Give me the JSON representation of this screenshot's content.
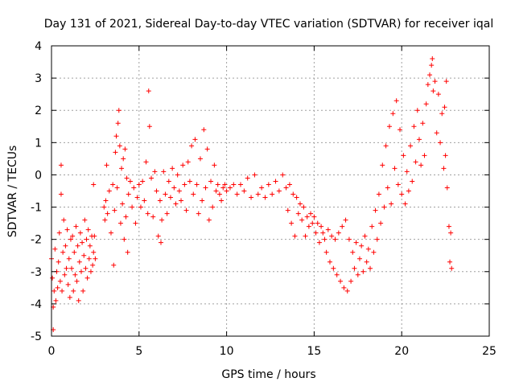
{
  "chart_data": {
    "type": "scatter",
    "title": "Day 131 of 2021, Sidereal Day-to-day VTEC variation (SDTVAR) for receiver iqal",
    "xlabel": "GPS time / hours",
    "ylabel": "SDTVAR / TECUs",
    "xlim": [
      0,
      25
    ],
    "ylim": [
      -5,
      4
    ],
    "xticks": [
      "0",
      "5",
      "10",
      "15",
      "20",
      "25"
    ],
    "yticks": [
      "-5",
      "-4",
      "-3",
      "-2",
      "-1",
      "0",
      "1",
      "2",
      "3",
      "4"
    ],
    "grid": true,
    "marker": "+",
    "color": "#ff0000",
    "series": [
      {
        "name": "SDTVAR",
        "points": [
          [
            0.0,
            -2.6
          ],
          [
            0.05,
            -3.2
          ],
          [
            0.1,
            -4.1
          ],
          [
            0.1,
            -4.8
          ],
          [
            0.15,
            -3.6
          ],
          [
            0.2,
            -2.3
          ],
          [
            0.25,
            -3.9
          ],
          [
            0.3,
            -3.0
          ],
          [
            0.35,
            -3.5
          ],
          [
            0.4,
            -2.7
          ],
          [
            0.45,
            -1.8
          ],
          [
            0.5,
            -3.3
          ],
          [
            0.55,
            -0.6
          ],
          [
            0.55,
            0.3
          ],
          [
            0.6,
            -3.6
          ],
          [
            0.65,
            -2.4
          ],
          [
            0.7,
            -1.4
          ],
          [
            0.75,
            -3.1
          ],
          [
            0.8,
            -2.2
          ],
          [
            0.85,
            -2.9
          ],
          [
            0.9,
            -1.7
          ],
          [
            0.95,
            -3.4
          ],
          [
            1.0,
            -2.6
          ],
          [
            1.05,
            -3.8
          ],
          [
            1.1,
            -2.0
          ],
          [
            1.15,
            -2.9
          ],
          [
            1.2,
            -1.9
          ],
          [
            1.25,
            -3.6
          ],
          [
            1.3,
            -2.4
          ],
          [
            1.35,
            -3.1
          ],
          [
            1.4,
            -1.6
          ],
          [
            1.45,
            -3.3
          ],
          [
            1.5,
            -2.2
          ],
          [
            1.55,
            -3.9
          ],
          [
            1.6,
            -2.7
          ],
          [
            1.65,
            -1.8
          ],
          [
            1.7,
            -3.0
          ],
          [
            1.75,
            -2.1
          ],
          [
            1.8,
            -3.6
          ],
          [
            1.85,
            -2.5
          ],
          [
            1.9,
            -1.4
          ],
          [
            1.95,
            -2.9
          ],
          [
            2.0,
            -2.0
          ],
          [
            2.05,
            -3.2
          ],
          [
            2.1,
            -1.7
          ],
          [
            2.15,
            -2.6
          ],
          [
            2.2,
            -2.2
          ],
          [
            2.25,
            -3.0
          ],
          [
            2.3,
            -1.9
          ],
          [
            2.35,
            -2.8
          ],
          [
            2.4,
            -2.4
          ],
          [
            2.45,
            -1.9
          ],
          [
            2.5,
            -2.6
          ],
          [
            2.4,
            -0.3
          ],
          [
            3.0,
            -1.0
          ],
          [
            3.05,
            -1.4
          ],
          [
            3.1,
            -0.8
          ],
          [
            3.15,
            0.3
          ],
          [
            3.2,
            -1.2
          ],
          [
            3.3,
            -0.5
          ],
          [
            3.4,
            -1.8
          ],
          [
            3.5,
            -0.3
          ],
          [
            3.55,
            -2.8
          ],
          [
            3.6,
            -1.1
          ],
          [
            3.65,
            0.7
          ],
          [
            3.7,
            1.2
          ],
          [
            3.75,
            -0.4
          ],
          [
            3.8,
            1.6
          ],
          [
            3.85,
            2.0
          ],
          [
            3.9,
            0.9
          ],
          [
            3.95,
            -1.5
          ],
          [
            4.0,
            0.2
          ],
          [
            4.05,
            -0.9
          ],
          [
            4.1,
            0.5
          ],
          [
            4.15,
            -2.0
          ],
          [
            4.2,
            0.8
          ],
          [
            4.25,
            -1.3
          ],
          [
            4.3,
            -0.1
          ],
          [
            4.35,
            -2.4
          ],
          [
            4.4,
            -0.6
          ],
          [
            4.5,
            -0.2
          ],
          [
            4.6,
            -1.0
          ],
          [
            4.7,
            -0.4
          ],
          [
            4.8,
            -1.5
          ],
          [
            4.9,
            -0.7
          ],
          [
            5.0,
            -0.3
          ],
          [
            5.1,
            -1.0
          ],
          [
            5.2,
            -0.2
          ],
          [
            5.3,
            -0.8
          ],
          [
            5.4,
            0.4
          ],
          [
            5.5,
            -1.2
          ],
          [
            5.55,
            2.6
          ],
          [
            5.6,
            1.5
          ],
          [
            5.7,
            -0.1
          ],
          [
            5.8,
            -1.3
          ],
          [
            5.9,
            0.1
          ],
          [
            6.0,
            -0.5
          ],
          [
            6.1,
            -1.9
          ],
          [
            6.2,
            -0.8
          ],
          [
            6.25,
            -2.1
          ],
          [
            6.3,
            -1.4
          ],
          [
            6.4,
            0.1
          ],
          [
            6.5,
            -0.6
          ],
          [
            6.6,
            -1.2
          ],
          [
            6.7,
            -0.2
          ],
          [
            6.8,
            -0.7
          ],
          [
            6.9,
            0.2
          ],
          [
            7.0,
            -0.4
          ],
          [
            7.1,
            -0.9
          ],
          [
            7.2,
            0.0
          ],
          [
            7.3,
            -0.5
          ],
          [
            7.4,
            -0.8
          ],
          [
            7.5,
            0.3
          ],
          [
            7.6,
            -0.3
          ],
          [
            7.7,
            -1.1
          ],
          [
            7.8,
            0.4
          ],
          [
            7.9,
            -0.2
          ],
          [
            8.0,
            0.9
          ],
          [
            8.1,
            -0.6
          ],
          [
            8.2,
            1.1
          ],
          [
            8.3,
            -0.3
          ],
          [
            8.4,
            -1.2
          ],
          [
            8.5,
            0.5
          ],
          [
            8.6,
            -0.8
          ],
          [
            8.7,
            1.4
          ],
          [
            8.8,
            -0.4
          ],
          [
            8.9,
            0.8
          ],
          [
            9.0,
            -1.4
          ],
          [
            9.1,
            -0.2
          ],
          [
            9.2,
            -1.0
          ],
          [
            9.3,
            0.3
          ],
          [
            9.4,
            -0.5
          ],
          [
            9.5,
            -0.3
          ],
          [
            9.6,
            -0.6
          ],
          [
            9.7,
            -0.8
          ],
          [
            9.8,
            -0.4
          ],
          [
            9.9,
            -0.3
          ],
          [
            10.0,
            -0.5
          ],
          [
            10.2,
            -0.4
          ],
          [
            10.4,
            -0.3
          ],
          [
            10.6,
            -0.6
          ],
          [
            10.8,
            -0.3
          ],
          [
            11.0,
            -0.5
          ],
          [
            11.2,
            -0.1
          ],
          [
            11.4,
            -0.7
          ],
          [
            11.6,
            0.0
          ],
          [
            11.8,
            -0.6
          ],
          [
            12.0,
            -0.4
          ],
          [
            12.2,
            -0.7
          ],
          [
            12.4,
            -0.3
          ],
          [
            12.6,
            -0.6
          ],
          [
            12.8,
            -0.2
          ],
          [
            13.0,
            -0.5
          ],
          [
            13.2,
            0.0
          ],
          [
            13.4,
            -0.4
          ],
          [
            13.5,
            -1.1
          ],
          [
            13.6,
            -0.3
          ],
          [
            13.7,
            -1.5
          ],
          [
            13.8,
            -0.6
          ],
          [
            13.9,
            -1.9
          ],
          [
            14.0,
            -0.7
          ],
          [
            14.1,
            -1.2
          ],
          [
            14.2,
            -0.9
          ],
          [
            14.3,
            -1.4
          ],
          [
            14.4,
            -1.0
          ],
          [
            14.5,
            -1.9
          ],
          [
            14.6,
            -1.3
          ],
          [
            14.7,
            -1.6
          ],
          [
            14.8,
            -1.2
          ],
          [
            14.9,
            -1.5
          ],
          [
            15.0,
            -1.3
          ],
          [
            15.1,
            -1.8
          ],
          [
            15.2,
            -1.5
          ],
          [
            15.3,
            -2.1
          ],
          [
            15.4,
            -1.6
          ],
          [
            15.5,
            -1.8
          ],
          [
            15.6,
            -2.0
          ],
          [
            15.7,
            -2.4
          ],
          [
            15.8,
            -1.7
          ],
          [
            15.9,
            -2.7
          ],
          [
            16.0,
            -1.9
          ],
          [
            16.1,
            -2.9
          ],
          [
            16.2,
            -2.0
          ],
          [
            16.3,
            -3.1
          ],
          [
            16.4,
            -1.8
          ],
          [
            16.5,
            -3.3
          ],
          [
            16.6,
            -1.6
          ],
          [
            16.7,
            -3.5
          ],
          [
            16.8,
            -1.4
          ],
          [
            16.9,
            -3.6
          ],
          [
            17.0,
            -2.0
          ],
          [
            17.1,
            -3.3
          ],
          [
            17.2,
            -2.4
          ],
          [
            17.3,
            -2.9
          ],
          [
            17.4,
            -2.1
          ],
          [
            17.5,
            -3.1
          ],
          [
            17.6,
            -2.6
          ],
          [
            17.7,
            -2.2
          ],
          [
            17.8,
            -3.0
          ],
          [
            17.9,
            -1.9
          ],
          [
            18.0,
            -2.7
          ],
          [
            18.1,
            -2.3
          ],
          [
            18.2,
            -2.9
          ],
          [
            18.3,
            -1.6
          ],
          [
            18.4,
            -2.4
          ],
          [
            18.5,
            -1.1
          ],
          [
            18.6,
            -2.0
          ],
          [
            18.7,
            -0.6
          ],
          [
            18.8,
            -1.5
          ],
          [
            18.9,
            0.3
          ],
          [
            19.0,
            -1.0
          ],
          [
            19.1,
            0.9
          ],
          [
            19.2,
            -0.4
          ],
          [
            19.3,
            1.5
          ],
          [
            19.4,
            -0.9
          ],
          [
            19.5,
            1.9
          ],
          [
            19.6,
            0.2
          ],
          [
            19.7,
            2.3
          ],
          [
            19.8,
            -0.3
          ],
          [
            19.9,
            1.4
          ],
          [
            20.0,
            -0.6
          ],
          [
            20.1,
            0.6
          ],
          [
            20.2,
            -0.9
          ],
          [
            20.3,
            0.1
          ],
          [
            20.4,
            -0.5
          ],
          [
            20.5,
            0.9
          ],
          [
            20.6,
            -0.2
          ],
          [
            20.7,
            1.5
          ],
          [
            20.8,
            0.4
          ],
          [
            20.9,
            2.0
          ],
          [
            21.0,
            1.1
          ],
          [
            21.1,
            0.3
          ],
          [
            21.2,
            1.6
          ],
          [
            21.3,
            0.6
          ],
          [
            21.4,
            2.2
          ],
          [
            21.5,
            2.8
          ],
          [
            21.6,
            3.1
          ],
          [
            21.7,
            3.4
          ],
          [
            21.75,
            3.6
          ],
          [
            21.8,
            2.6
          ],
          [
            21.9,
            2.9
          ],
          [
            22.0,
            1.3
          ],
          [
            22.1,
            2.5
          ],
          [
            22.2,
            1.0
          ],
          [
            22.3,
            1.9
          ],
          [
            22.4,
            0.2
          ],
          [
            22.45,
            2.1
          ],
          [
            22.5,
            0.6
          ],
          [
            22.55,
            2.9
          ],
          [
            22.6,
            -0.4
          ],
          [
            22.7,
            -1.6
          ],
          [
            22.75,
            -2.7
          ],
          [
            22.8,
            -1.8
          ],
          [
            22.85,
            -2.9
          ]
        ]
      }
    ]
  }
}
